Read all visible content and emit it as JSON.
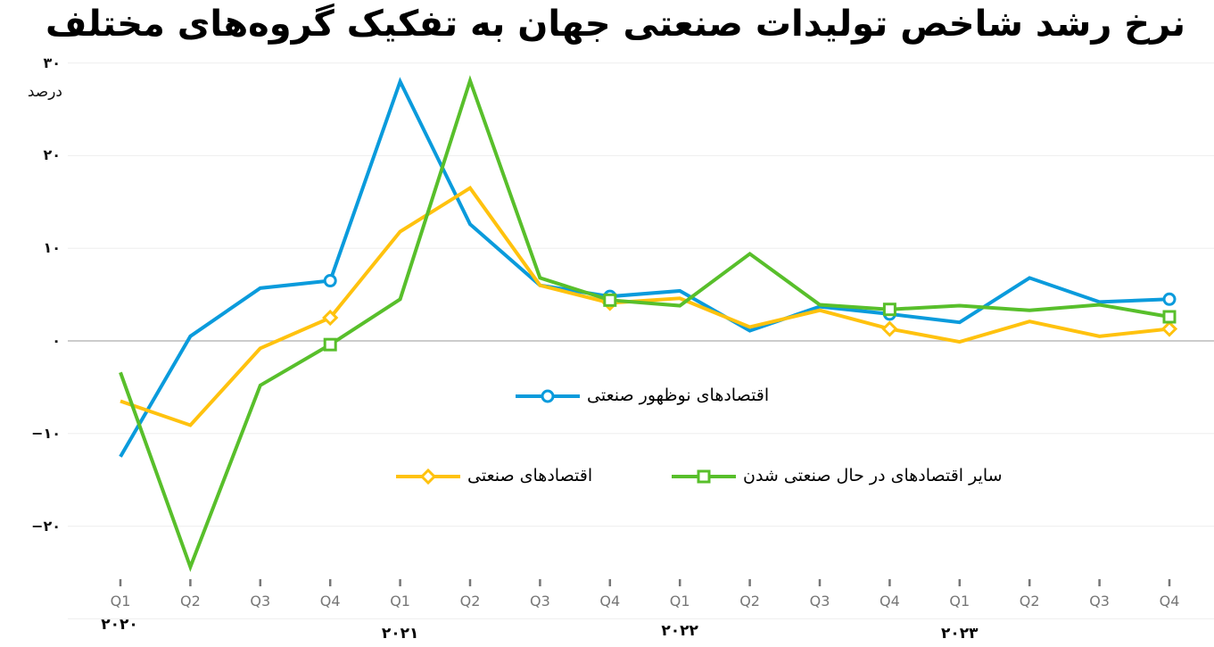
{
  "title": "نرخ رشد شاخص تولیدات صنعتی جهان به تفکیک گروه‌های مختلف",
  "colors": {
    "emerging": "#0a9bdc",
    "industrial": "#ffc20e",
    "other": "#58bf2b",
    "grid": "#eeeeee",
    "zero_line": "#bbbbbb",
    "tick": "#777777"
  },
  "y_axis": {
    "unit": "درصد",
    "ticks": [
      {
        "value": 30,
        "label": "۳۰"
      },
      {
        "value": 20,
        "label": "۲۰"
      },
      {
        "value": 10,
        "label": "۱۰"
      },
      {
        "value": 0,
        "label": "۰"
      },
      {
        "value": -10,
        "label": "−۱۰"
      },
      {
        "value": -20,
        "label": "−۲۰"
      }
    ]
  },
  "x_axis": {
    "quarters": [
      "Q1",
      "Q2",
      "Q3",
      "Q4",
      "Q1",
      "Q2",
      "Q3",
      "Q4",
      "Q1",
      "Q2",
      "Q3",
      "Q4",
      "Q1",
      "Q2",
      "Q3",
      "Q4"
    ],
    "years": [
      {
        "label": "۲۰۲۰",
        "at": 0
      },
      {
        "label": "۲۰۲۱",
        "at": 4
      },
      {
        "label": "۲۰۲۲",
        "at": 8
      },
      {
        "label": "۲۰۲۳",
        "at": 12
      }
    ]
  },
  "legend": {
    "emerging": "اقتصادهای نوظهور صنعتی",
    "industrial": "اقتصادهای صنعتی",
    "other": "سایر اقتصادهای در حال صنعتی شدن"
  },
  "chart_data": {
    "type": "line",
    "title": "نرخ رشد شاخص تولیدات صنعتی جهان به تفکیک گروه‌های مختلف",
    "xlabel": "",
    "ylabel": "درصد",
    "ylim": [
      -30,
      30
    ],
    "grid": true,
    "legend_position": "inside-center",
    "categories": [
      "2020 Q1",
      "2020 Q2",
      "2020 Q3",
      "2020 Q4",
      "2021 Q1",
      "2021 Q2",
      "2021 Q3",
      "2021 Q4",
      "2022 Q1",
      "2022 Q2",
      "2022 Q3",
      "2022 Q4",
      "2023 Q1",
      "2023 Q2",
      "2023 Q3",
      "2023 Q4"
    ],
    "series": [
      {
        "name": "اقتصادهای نوظهور صنعتی",
        "key": "emerging",
        "marker": "circle",
        "values": [
          -12.5,
          0.5,
          5.7,
          6.5,
          28.0,
          12.6,
          6.0,
          4.8,
          5.4,
          1.1,
          3.7,
          2.9,
          2.0,
          6.8,
          4.2,
          4.5
        ],
        "marker_indices": [
          3,
          7,
          11,
          15
        ]
      },
      {
        "name": "اقتصادهای صنعتی",
        "key": "industrial",
        "marker": "diamond",
        "values": [
          -6.5,
          -9.1,
          -0.8,
          2.5,
          11.8,
          16.5,
          6.0,
          4.1,
          4.6,
          1.5,
          3.3,
          1.3,
          -0.1,
          2.1,
          0.5,
          1.3
        ],
        "marker_indices": [
          3,
          7,
          11,
          15
        ]
      },
      {
        "name": "سایر اقتصادهای در حال صنعتی شدن",
        "key": "other",
        "marker": "square",
        "values": [
          -3.4,
          -24.4,
          -4.8,
          -0.4,
          4.5,
          28.1,
          6.8,
          4.4,
          3.8,
          9.4,
          3.9,
          3.4,
          3.8,
          3.3,
          3.9,
          2.6
        ],
        "marker_indices": [
          3,
          7,
          11,
          15
        ]
      }
    ]
  }
}
